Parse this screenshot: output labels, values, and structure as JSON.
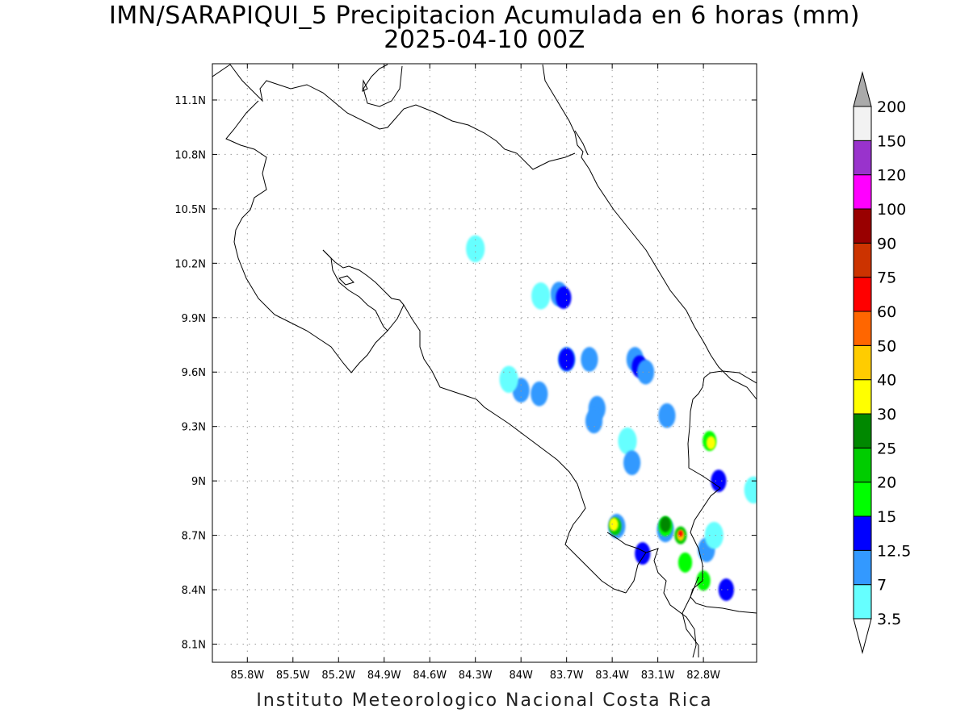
{
  "title": {
    "line1": "IMN/SARAPIQUI_5 Precipitacion Acumulada en 6 horas (mm)",
    "line2": "2025-04-10 00Z"
  },
  "footer": "Instituto Meteorologico Nacional Costa Rica",
  "map": {
    "lon_range": [
      -86.03,
      -82.45
    ],
    "lat_range": [
      8.0,
      11.3
    ],
    "lon_ticks": [
      -85.8,
      -85.5,
      -85.2,
      -84.9,
      -84.6,
      -84.3,
      -84.0,
      -83.7,
      -83.4,
      -83.1,
      -82.8
    ],
    "lon_tick_labels": [
      "85.8W",
      "85.5W",
      "85.2W",
      "84.9W",
      "84.6W",
      "84.3W",
      "84W",
      "83.7W",
      "83.4W",
      "83.1W",
      "82.8W"
    ],
    "lat_ticks": [
      8.1,
      8.4,
      8.7,
      9.0,
      9.3,
      9.6,
      9.9,
      10.2,
      10.5,
      10.8,
      11.1
    ],
    "lat_tick_labels": [
      "8.1N",
      "8.4N",
      "8.7N",
      "9N",
      "9.3N",
      "9.6N",
      "9.9N",
      "10.2N",
      "10.5N",
      "10.8N",
      "11.1N"
    ],
    "grid": true
  },
  "colorbar": {
    "levels": [
      "3.5",
      "7",
      "12.5",
      "15",
      "20",
      "25",
      "30",
      "40",
      "50",
      "60",
      "75",
      "90",
      "100",
      "120",
      "150",
      "200"
    ],
    "colors": [
      "#ffffff",
      "#66ffff",
      "#3399ff",
      "#0000ff",
      "#00ff00",
      "#00cc00",
      "#008800",
      "#ffff00",
      "#ffcc00",
      "#ff6600",
      "#ff0000",
      "#cc3300",
      "#990000",
      "#ff00ff",
      "#9933cc",
      "#f2f2f2",
      "#aaaaaa"
    ]
  },
  "precip_cells": [
    {
      "lon": -84.3,
      "lat": 10.28,
      "level": 1
    },
    {
      "lon": -83.75,
      "lat": 10.03,
      "level": 2
    },
    {
      "lon": -83.72,
      "lat": 10.01,
      "level": 3
    },
    {
      "lon": -83.87,
      "lat": 10.02,
      "level": 1
    },
    {
      "lon": -83.7,
      "lat": 9.67,
      "level": 2
    },
    {
      "lon": -83.7,
      "lat": 9.67,
      "level": 3
    },
    {
      "lon": -83.55,
      "lat": 9.67,
      "level": 2
    },
    {
      "lon": -84.0,
      "lat": 9.5,
      "level": 2
    },
    {
      "lon": -83.88,
      "lat": 9.48,
      "level": 2
    },
    {
      "lon": -84.08,
      "lat": 9.56,
      "level": 1
    },
    {
      "lon": -83.5,
      "lat": 9.4,
      "level": 2
    },
    {
      "lon": -83.52,
      "lat": 9.33,
      "level": 2
    },
    {
      "lon": -83.25,
      "lat": 9.67,
      "level": 2
    },
    {
      "lon": -83.22,
      "lat": 9.63,
      "level": 3
    },
    {
      "lon": -83.18,
      "lat": 9.6,
      "level": 2
    },
    {
      "lon": -83.04,
      "lat": 9.36,
      "level": 2
    },
    {
      "lon": -83.3,
      "lat": 9.22,
      "level": 1
    },
    {
      "lon": -83.27,
      "lat": 9.1,
      "level": 2
    },
    {
      "lon": -82.76,
      "lat": 9.22,
      "level": 4
    },
    {
      "lon": -82.75,
      "lat": 9.21,
      "level": 7
    },
    {
      "lon": -82.7,
      "lat": 9.0,
      "level": 3
    },
    {
      "lon": -82.47,
      "lat": 8.95,
      "level": 1
    },
    {
      "lon": -83.37,
      "lat": 8.75,
      "level": 2
    },
    {
      "lon": -83.38,
      "lat": 8.75,
      "level": 5
    },
    {
      "lon": -83.39,
      "lat": 8.76,
      "level": 7
    },
    {
      "lon": -83.05,
      "lat": 8.73,
      "level": 2
    },
    {
      "lon": -83.05,
      "lat": 8.75,
      "level": 4
    },
    {
      "lon": -83.05,
      "lat": 8.76,
      "level": 6
    },
    {
      "lon": -82.95,
      "lat": 8.7,
      "level": 5
    },
    {
      "lon": -82.95,
      "lat": 8.7,
      "level": 8
    },
    {
      "lon": -82.95,
      "lat": 8.71,
      "level": 10
    },
    {
      "lon": -82.92,
      "lat": 8.55,
      "level": 4
    },
    {
      "lon": -83.2,
      "lat": 8.6,
      "level": 3
    },
    {
      "lon": -82.8,
      "lat": 8.45,
      "level": 4
    },
    {
      "lon": -82.65,
      "lat": 8.4,
      "level": 3
    },
    {
      "lon": -82.78,
      "lat": 8.62,
      "level": 2
    },
    {
      "lon": -82.73,
      "lat": 8.7,
      "level": 1
    }
  ]
}
